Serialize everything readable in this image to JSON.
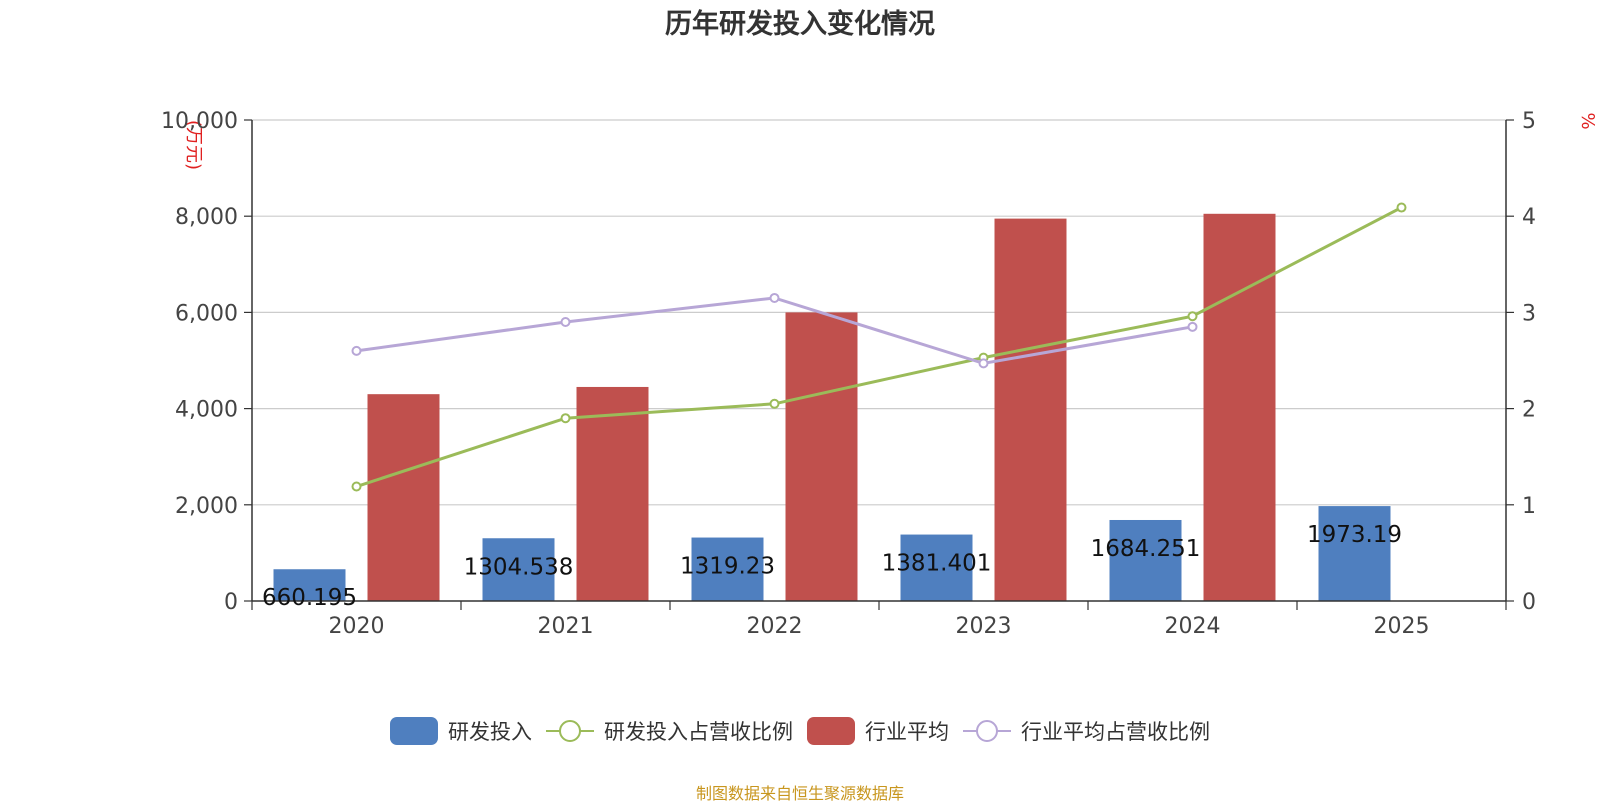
{
  "chart_data": {
    "type": "bar",
    "title": "历年研发投入变化情况",
    "categories": [
      "2020",
      "2021",
      "2022",
      "2023",
      "2024",
      "2025"
    ],
    "y_left": {
      "unit_label": "(万元)",
      "min": 0,
      "max": 10000,
      "ticks": [
        0,
        2000,
        4000,
        6000,
        8000,
        10000
      ],
      "tick_labels": [
        "0",
        "2,000",
        "4,000",
        "6,000",
        "8,000",
        "10,000"
      ]
    },
    "y_right": {
      "unit_label": "%",
      "min": 0,
      "max": 5,
      "ticks": [
        0,
        1,
        2,
        3,
        4,
        5
      ],
      "tick_labels": [
        "0",
        "1",
        "2",
        "3",
        "4",
        "5"
      ]
    },
    "grid": true,
    "legend_position": "bottom",
    "series": [
      {
        "name": "研发投入",
        "kind": "bar",
        "axis": "left",
        "color": "#4f7fbf",
        "values": [
          660.195,
          1304.538,
          1319.23,
          1381.401,
          1684.251,
          1973.19
        ],
        "labels": [
          "660.195",
          "1304.538",
          "1319.23",
          "1381.401",
          "1684.251",
          "1973.19"
        ]
      },
      {
        "name": "研发投入占营收比例",
        "kind": "line",
        "axis": "right",
        "color": "#9bbb59",
        "values": [
          1.19,
          1.9,
          2.05,
          2.53,
          2.96,
          4.09
        ]
      },
      {
        "name": "行业平均",
        "kind": "bar",
        "axis": "left",
        "color": "#c0504d",
        "values": [
          4300,
          4450,
          6000,
          7950,
          8050,
          null
        ]
      },
      {
        "name": "行业平均占营收比例",
        "kind": "line",
        "axis": "right",
        "color": "#b7a6d6",
        "values": [
          2.6,
          2.9,
          3.15,
          2.47,
          2.85,
          null
        ]
      }
    ]
  },
  "source_note": "制图数据来自恒生聚源数据库"
}
